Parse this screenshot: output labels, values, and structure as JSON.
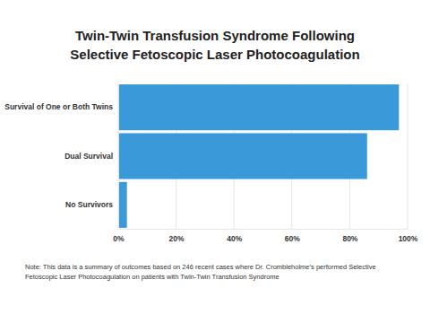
{
  "chart_data": {
    "type": "bar",
    "orientation": "horizontal",
    "title": "Twin-Twin Transfusion Syndrome Following\nSelective Fetoscopic Laser Photocoagulation",
    "categories": [
      "Survival of One or Both Twins",
      "Dual Survival",
      "No Survivors"
    ],
    "values": [
      97,
      86,
      3
    ],
    "color": "#3a9ad9",
    "xlim": [
      0,
      100
    ],
    "xticks": [
      {
        "value": 0,
        "label": "0%"
      },
      {
        "value": 20,
        "label": "20%"
      },
      {
        "value": 40,
        "label": "40%"
      },
      {
        "value": 60,
        "label": "60%"
      },
      {
        "value": 80,
        "label": "80%"
      },
      {
        "value": 100,
        "label": "100%"
      }
    ],
    "grid": true,
    "annotations": [
      "Note: This data is a summary of outcomes based on 246 recent cases where Dr. Crombleholme’s performed Selective Fetoscopic Laser Photocoagulation on patients with Twin-Twin Transfusion Syndrome"
    ]
  }
}
